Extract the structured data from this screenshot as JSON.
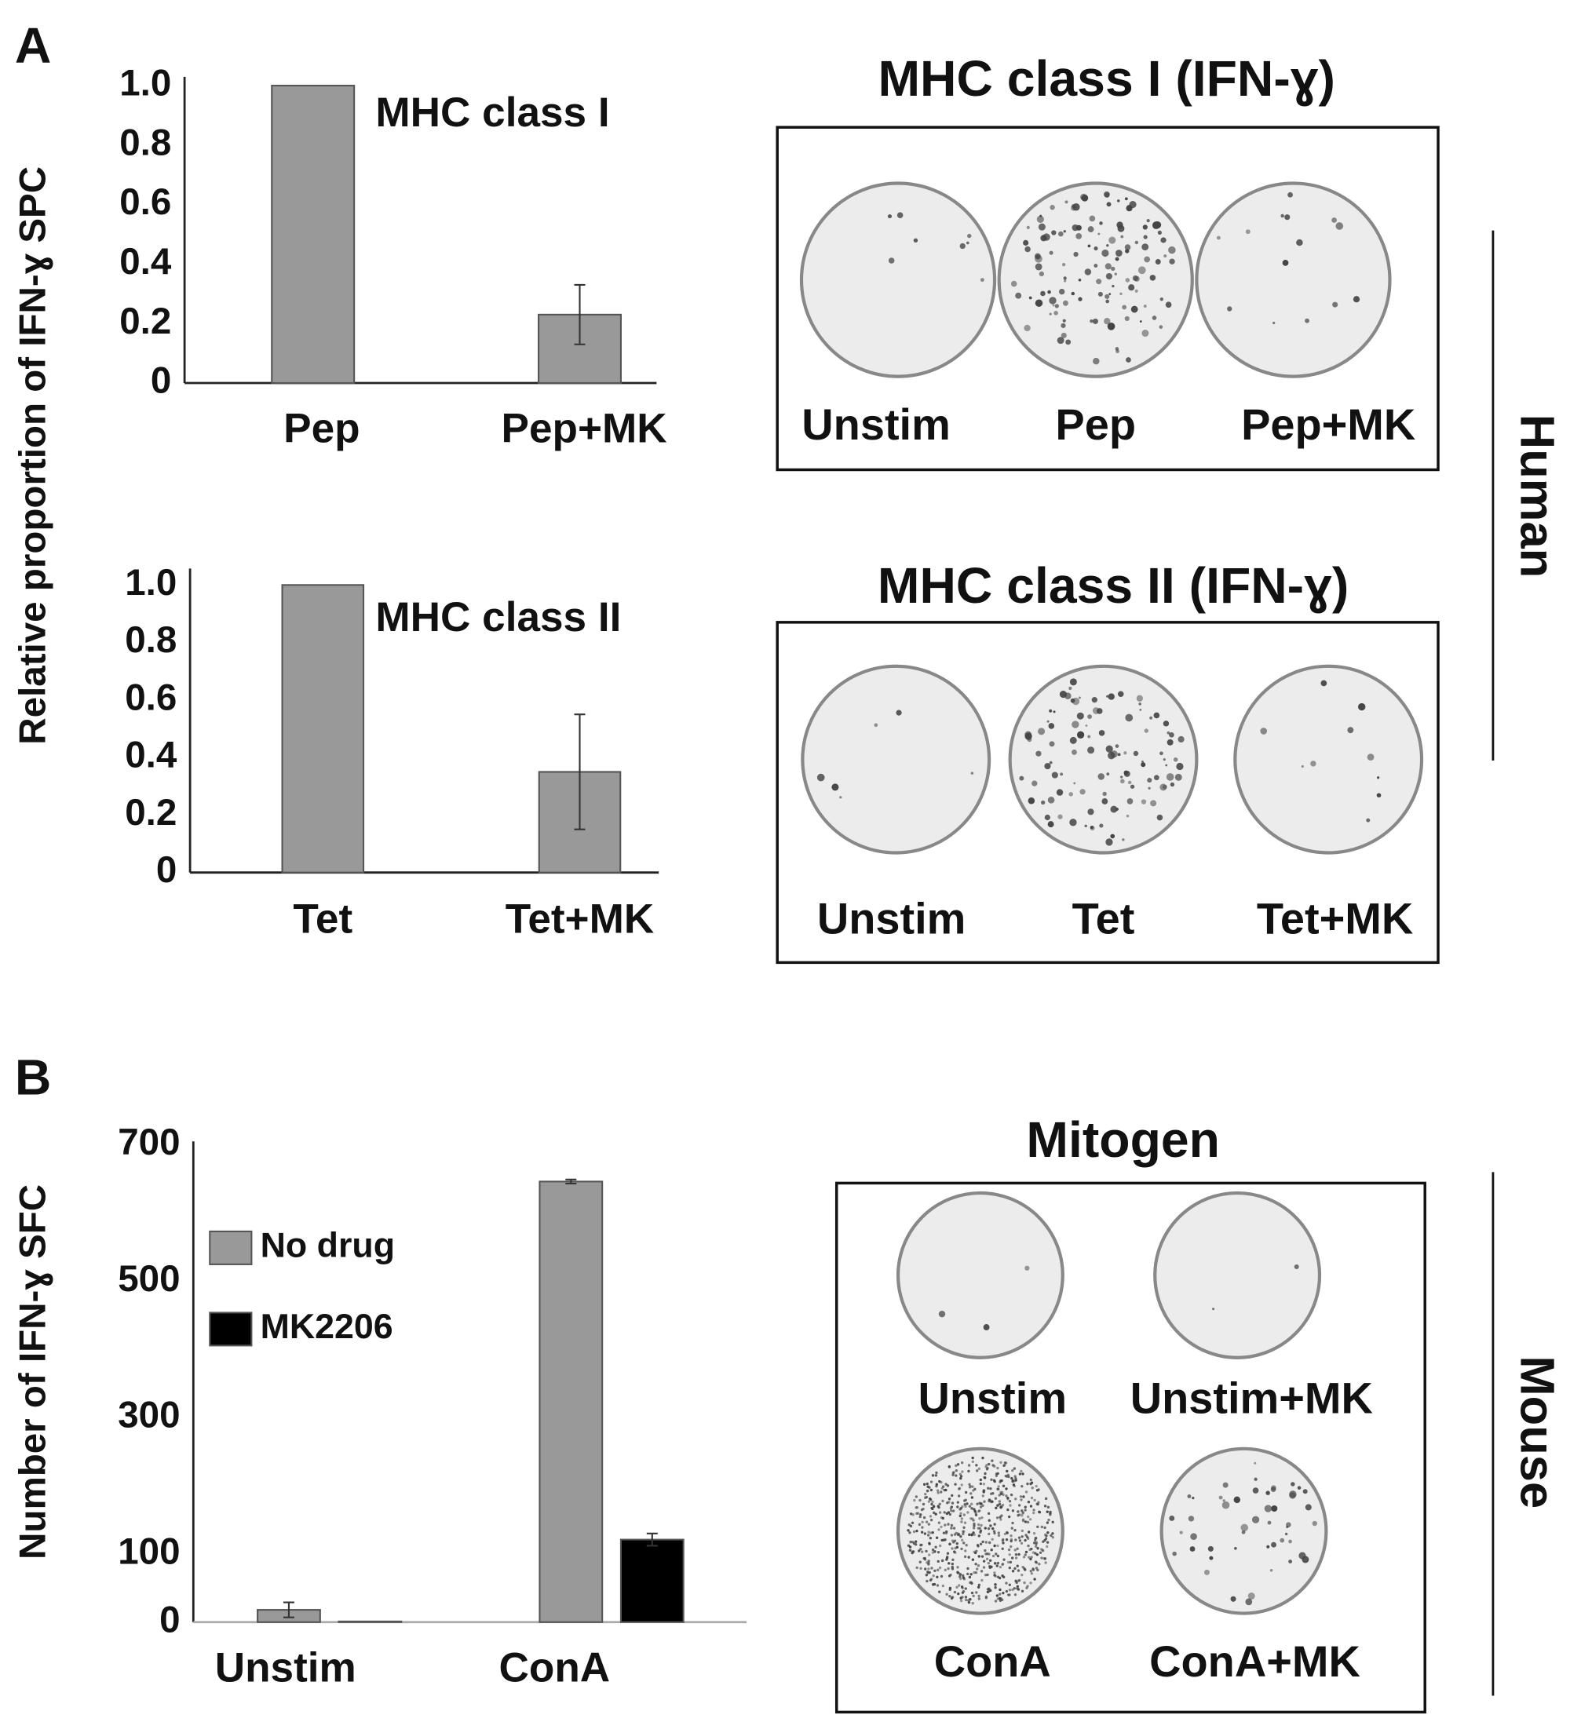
{
  "chart_data": [
    {
      "type": "bar",
      "ylabel": "Relative proportion of IFN-ɣ SPC",
      "annotation": "MHC class I",
      "categories": [
        "Pep",
        "Pep+MK"
      ],
      "values": [
        1.0,
        0.23
      ],
      "errors": [
        null,
        0.1
      ],
      "color": "#999999",
      "ylim": [
        0,
        1
      ],
      "yticks": [
        0,
        0.2,
        0.4,
        0.6,
        0.8,
        {
          "value": 1,
          "label": "1.0"
        }
      ]
    },
    {
      "type": "bar",
      "annotation": "MHC class II",
      "categories": [
        "Tet",
        "Tet+MK"
      ],
      "values": [
        1.0,
        0.35
      ],
      "errors": [
        null,
        0.2
      ],
      "color": "#999999",
      "ylim": [
        0,
        1
      ],
      "yticks": [
        0,
        0.2,
        0.4,
        0.6,
        0.8,
        {
          "value": 1,
          "label": "1.0"
        }
      ]
    },
    {
      "type": "grouped_bar",
      "ylabel": "Number of IFN-ɣ SFC",
      "categories": [
        "Unstim",
        "ConA"
      ],
      "series": [
        {
          "name": "No drug",
          "color": "#999999",
          "values": [
            18,
            646
          ],
          "errors": [
            11,
            3
          ]
        },
        {
          "name": "MK2206",
          "color": "#000000",
          "values": [
            1,
            121
          ],
          "errors": [
            null,
            9
          ]
        }
      ],
      "ylim": [
        0,
        700
      ],
      "yticks": [
        0,
        100,
        300,
        500,
        700
      ],
      "legend": "upper left"
    }
  ],
  "panel_labels": [
    "A",
    "B"
  ],
  "well_panels": [
    {
      "title": "MHC class I (IFN-ɣ)",
      "labels": [
        "Unstim",
        "Pep",
        "Pep+MK"
      ]
    },
    {
      "title": "MHC class II (IFN-ɣ)",
      "labels": [
        "Unstim",
        "Tet",
        "Tet+MK"
      ]
    },
    {
      "title": "Mitogen",
      "labels": [
        "Unstim",
        "Unstim+MK",
        "ConA",
        "ConA+MK"
      ]
    }
  ],
  "species": [
    "Human",
    "Mouse"
  ]
}
